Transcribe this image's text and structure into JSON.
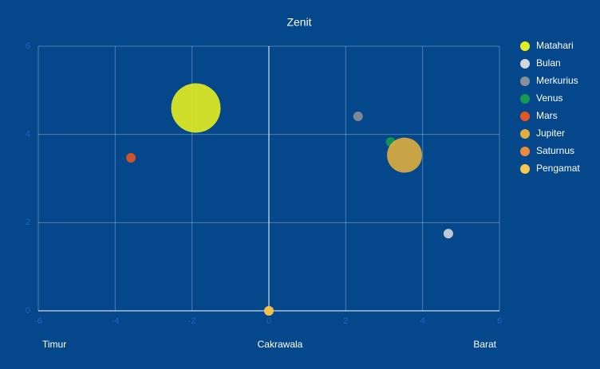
{
  "chart_data": {
    "type": "bubble",
    "title": "Zenit",
    "x_labels": [
      "Timur",
      "Cakrawala",
      "Barat"
    ],
    "xlim": [
      -6,
      6
    ],
    "xticks": [
      -6,
      -4,
      -2,
      0,
      2,
      4,
      6
    ],
    "ylim": [
      0,
      6
    ],
    "yticks": [
      0,
      2,
      4,
      6
    ],
    "grid": true,
    "legend": "right",
    "series": [
      {
        "name": "Matahari",
        "color": "#e4ee1f",
        "x": [
          -1.9
        ],
        "values": [
          4.6
        ],
        "sizes": [
          31
        ]
      },
      {
        "name": "Bulan",
        "color": "#d3d6dc",
        "x": [
          4.67
        ],
        "values": [
          1.75
        ],
        "sizes": [
          6
        ]
      },
      {
        "name": "Merkurius",
        "color": "#8a8f99",
        "x": [
          2.32
        ],
        "values": [
          4.41
        ],
        "sizes": [
          6
        ]
      },
      {
        "name": "Venus",
        "color": "#139c4f",
        "x": [
          3.17
        ],
        "values": [
          3.83
        ],
        "sizes": [
          6
        ]
      },
      {
        "name": "Mars",
        "color": "#e4571f",
        "x": [
          -3.59
        ],
        "values": [
          3.47
        ],
        "sizes": [
          6
        ]
      },
      {
        "name": "Jupiter",
        "color": "#dfae3f",
        "x": [
          3.53
        ],
        "values": [
          3.53
        ],
        "sizes": [
          22
        ]
      },
      {
        "name": "Saturnus",
        "color": "#ee8a3a",
        "x": [
          0
        ],
        "values": [
          0
        ],
        "sizes": [
          6
        ]
      },
      {
        "name": "Pengamat",
        "color": "#f5c74f",
        "x": [
          0
        ],
        "values": [
          0
        ],
        "sizes": [
          6
        ]
      }
    ]
  }
}
